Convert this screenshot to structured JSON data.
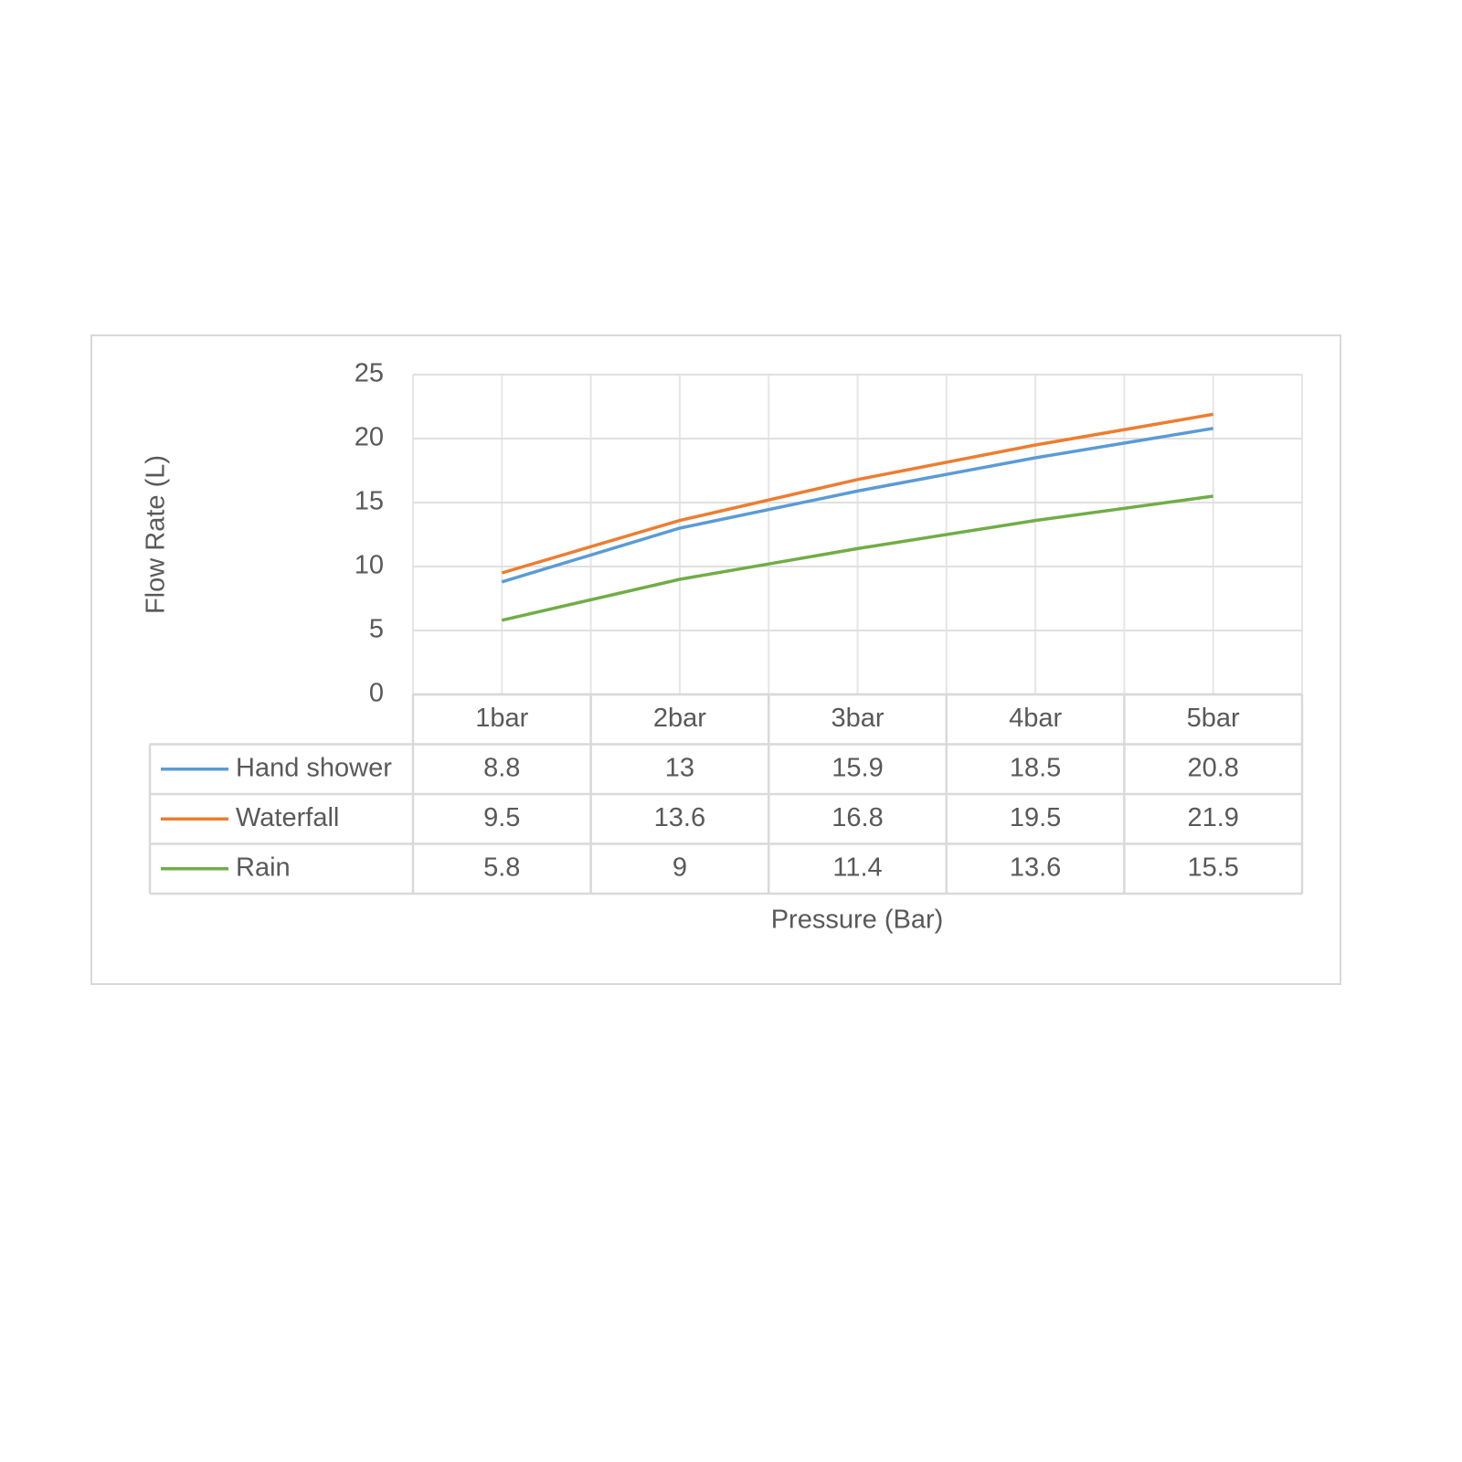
{
  "chart_data": {
    "type": "line",
    "x_label": "Pressure (Bar)",
    "y_label": "Flow Rate (L)",
    "categories": [
      "1bar",
      "2bar",
      "3bar",
      "4bar",
      "5bar"
    ],
    "series": [
      {
        "name": "Hand shower",
        "color": "#5b9bd5",
        "values": [
          8.8,
          13,
          15.9,
          18.5,
          20.8
        ]
      },
      {
        "name": "Waterfall",
        "color": "#ed7d31",
        "values": [
          9.5,
          13.6,
          16.8,
          19.5,
          21.9
        ]
      },
      {
        "name": "Rain",
        "color": "#70ad47",
        "values": [
          5.8,
          9,
          11.4,
          13.6,
          15.5
        ]
      }
    ],
    "ylim": [
      0,
      25
    ],
    "yticks": [
      0,
      5,
      10,
      15,
      20,
      25
    ],
    "grid": true
  }
}
